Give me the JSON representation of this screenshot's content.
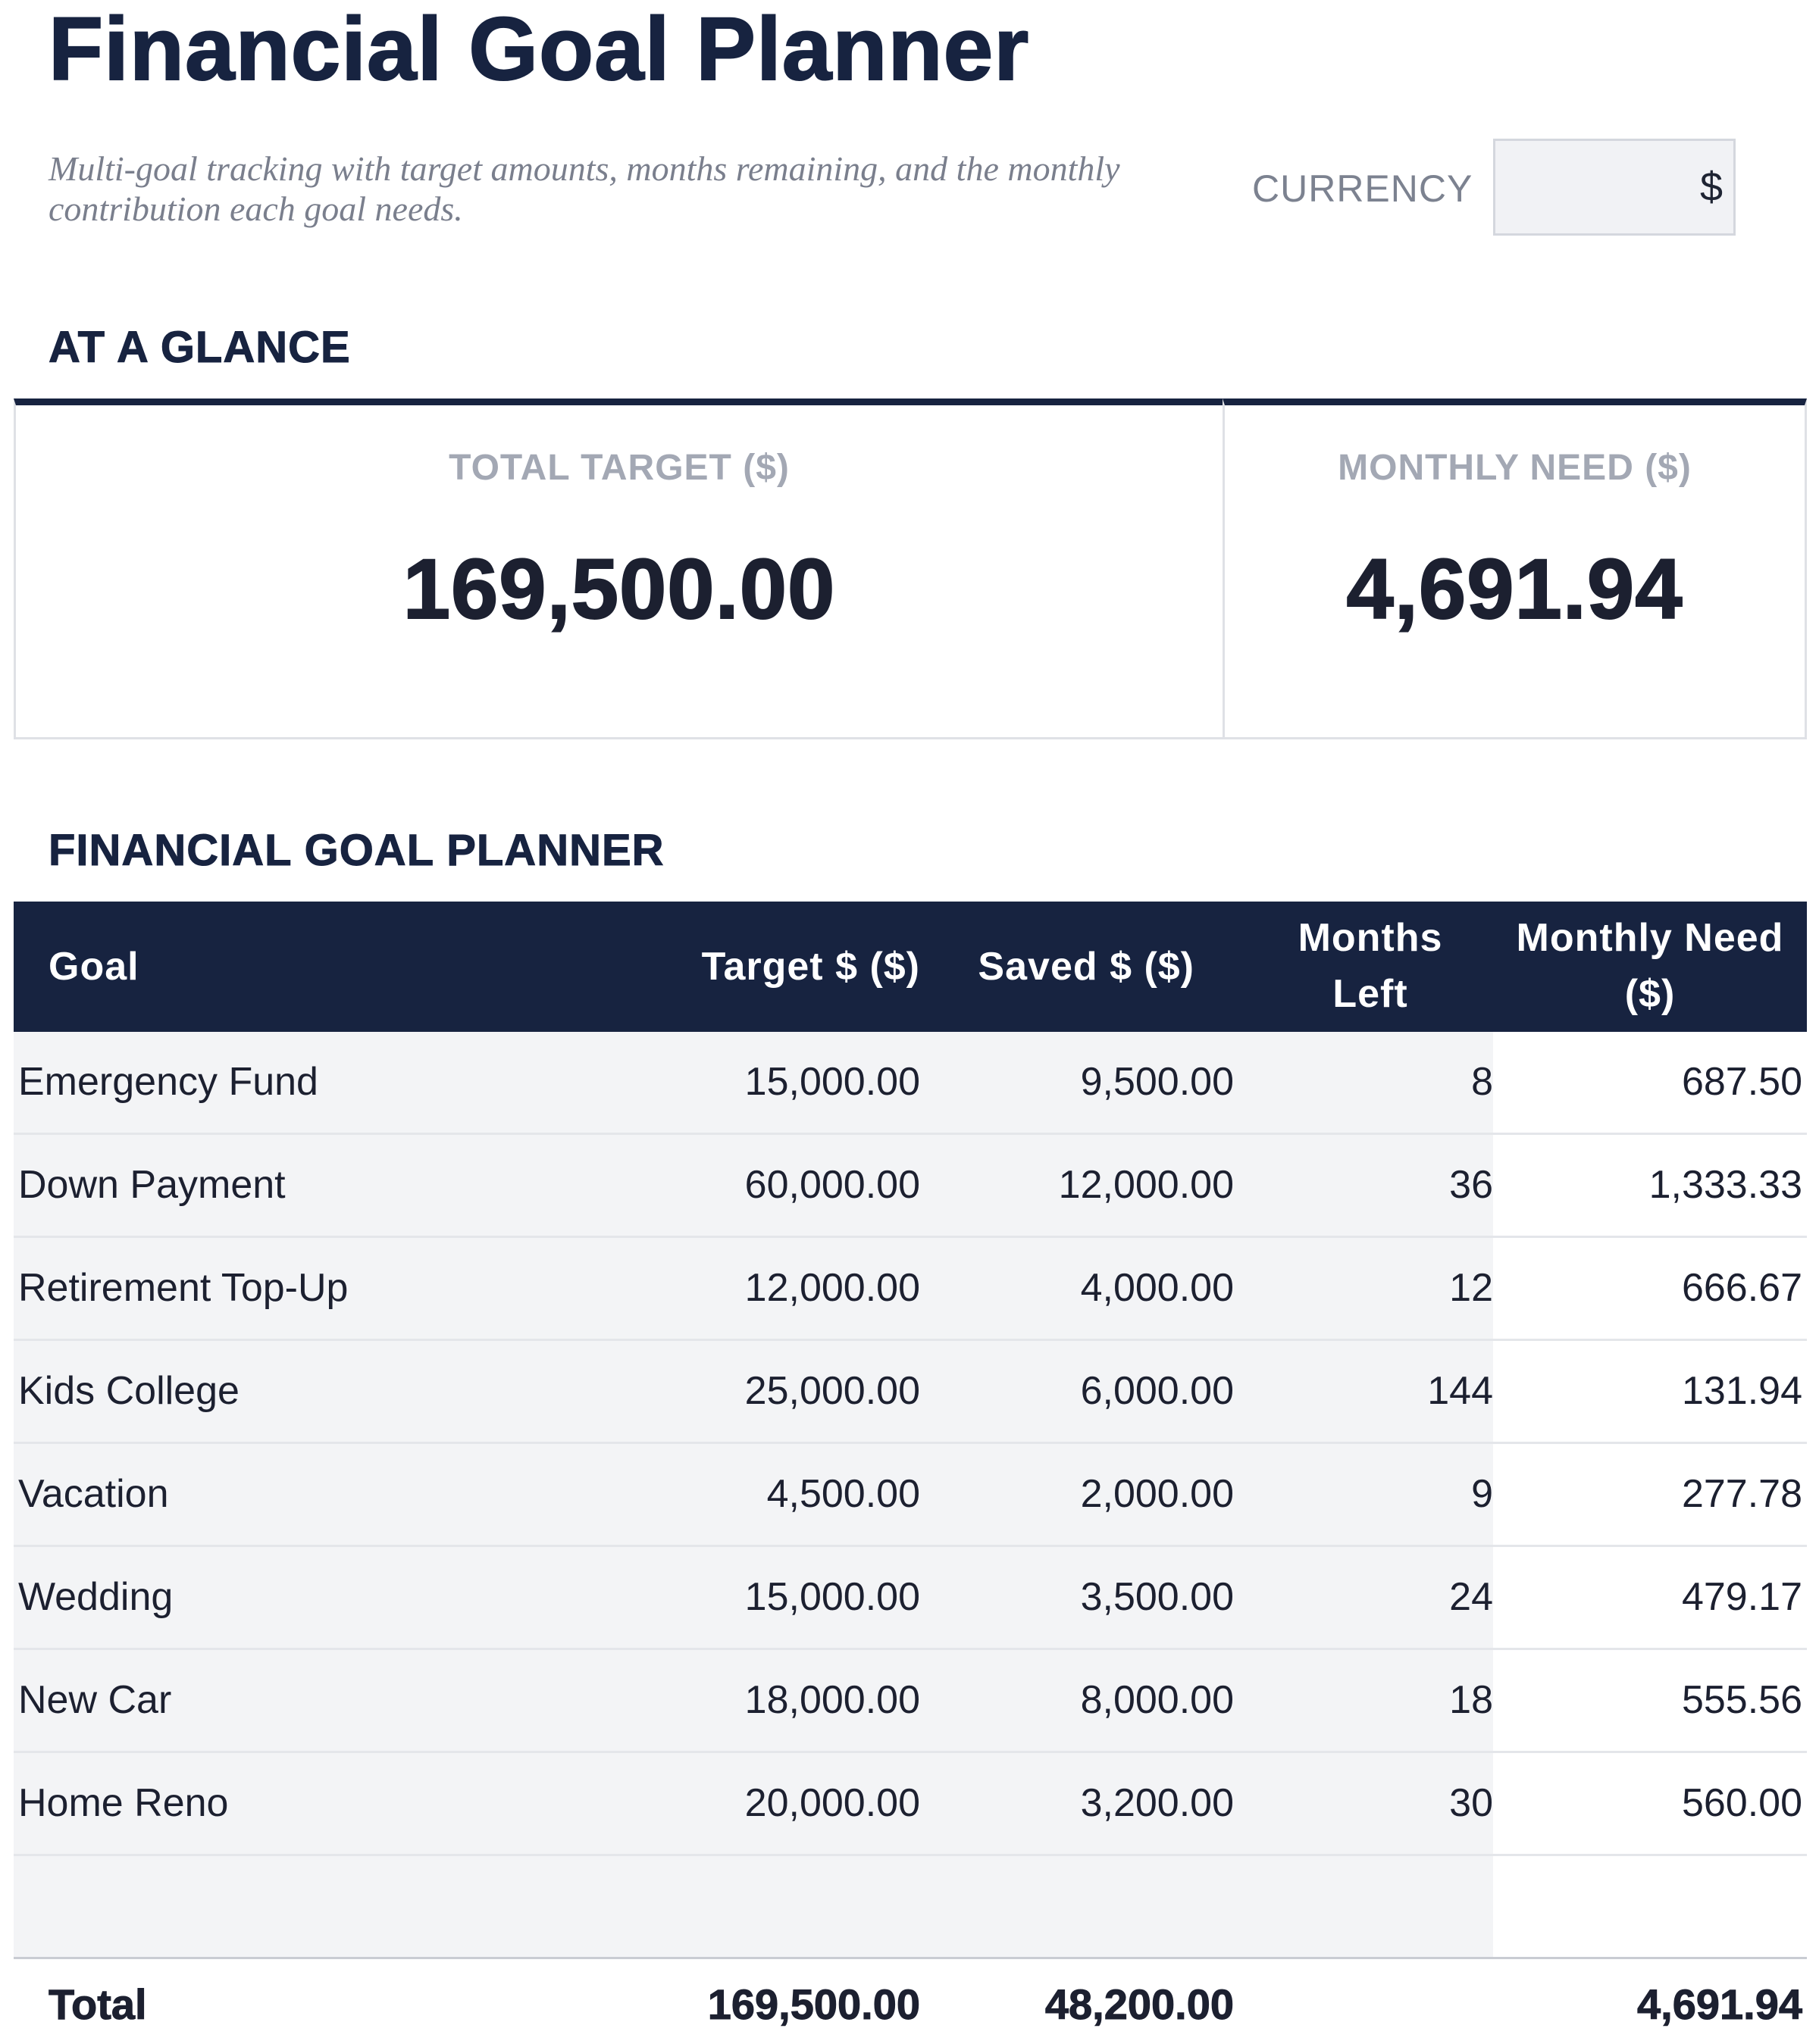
{
  "header": {
    "title": "Financial Goal Planner",
    "subtitle": "Multi-goal tracking with target amounts, months remaining, and the monthly contribution each goal needs.",
    "currency_label": "CURRENCY",
    "currency_value": "$"
  },
  "glance": {
    "heading": "AT A GLANCE",
    "cards": [
      {
        "label": "TOTAL TARGET ($)",
        "value": "169,500.00"
      },
      {
        "label": "MONTHLY NEED ($)",
        "value": "4,691.94"
      }
    ]
  },
  "planner": {
    "heading": "FINANCIAL GOAL PLANNER",
    "columns": {
      "goal": "Goal",
      "target": "Target $ ($)",
      "saved": "Saved $ ($)",
      "months_line1": "Months",
      "months_line2": "Left",
      "need_line1": "Monthly Need",
      "need_line2": "($)"
    },
    "rows": [
      {
        "goal": "Emergency Fund",
        "target": "15,000.00",
        "saved": "9,500.00",
        "months": "8",
        "need": "687.50"
      },
      {
        "goal": "Down Payment",
        "target": "60,000.00",
        "saved": "12,000.00",
        "months": "36",
        "need": "1,333.33"
      },
      {
        "goal": "Retirement Top-Up",
        "target": "12,000.00",
        "saved": "4,000.00",
        "months": "12",
        "need": "666.67"
      },
      {
        "goal": "Kids College",
        "target": "25,000.00",
        "saved": "6,000.00",
        "months": "144",
        "need": "131.94"
      },
      {
        "goal": "Vacation",
        "target": "4,500.00",
        "saved": "2,000.00",
        "months": "9",
        "need": "277.78"
      },
      {
        "goal": "Wedding",
        "target": "15,000.00",
        "saved": "3,500.00",
        "months": "24",
        "need": "479.17"
      },
      {
        "goal": "New Car",
        "target": "18,000.00",
        "saved": "8,000.00",
        "months": "18",
        "need": "555.56"
      },
      {
        "goal": "Home Reno",
        "target": "20,000.00",
        "saved": "3,200.00",
        "months": "30",
        "need": "560.00"
      }
    ],
    "total": {
      "label": "Total",
      "target": "169,500.00",
      "saved": "48,200.00",
      "need": "4,691.94"
    }
  }
}
